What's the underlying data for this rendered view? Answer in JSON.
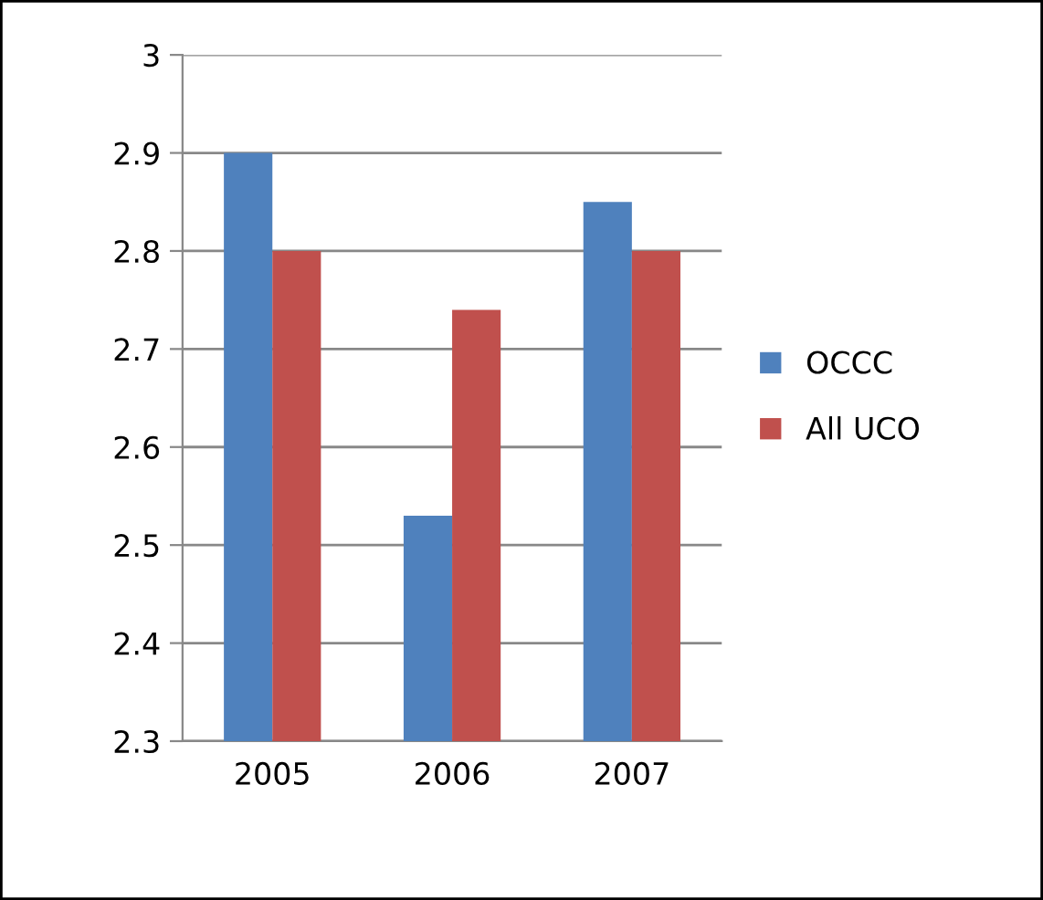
{
  "chart_data": {
    "type": "bar",
    "categories": [
      "2005",
      "2006",
      "2007"
    ],
    "series": [
      {
        "name": "OCCC",
        "color": "#4f81bd",
        "values": [
          2.9,
          2.53,
          2.85
        ]
      },
      {
        "name": "All UCO",
        "color": "#c0504d",
        "values": [
          2.8,
          2.74,
          2.8
        ]
      }
    ],
    "ylim": [
      2.3,
      3
    ],
    "yticks": [
      2.3,
      2.4,
      2.5,
      2.6,
      2.7,
      2.8,
      2.9,
      3
    ],
    "grid": "y",
    "legend": "right"
  }
}
